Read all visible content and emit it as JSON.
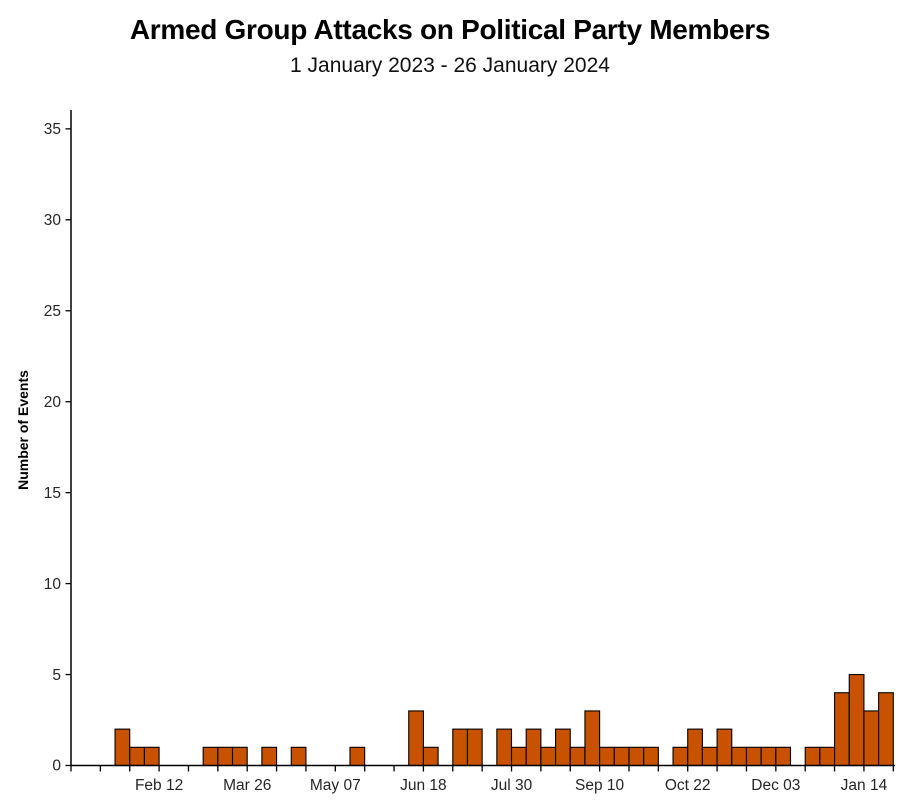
{
  "header": {
    "title": "Armed Group Attacks on Political Party Members",
    "subtitle": "1 January 2023 - 26 January 2024"
  },
  "chart_data": {
    "type": "bar",
    "title": "Armed Group Attacks on Political Party Members",
    "subtitle": "1 January 2023 - 26 January 2024",
    "xlabel": "",
    "ylabel": "Number of Events",
    "ylim": [
      0,
      35
    ],
    "yticks": [
      0,
      5,
      10,
      15,
      20,
      25,
      30,
      35
    ],
    "grid": "off",
    "legend": "none",
    "bin_unit": "week",
    "x_week_starts": [
      "2023-01-01",
      "2023-01-08",
      "2023-01-15",
      "2023-01-22",
      "2023-01-29",
      "2023-02-05",
      "2023-02-12",
      "2023-02-19",
      "2023-02-26",
      "2023-03-05",
      "2023-03-12",
      "2023-03-19",
      "2023-03-26",
      "2023-04-02",
      "2023-04-09",
      "2023-04-16",
      "2023-04-23",
      "2023-04-30",
      "2023-05-07",
      "2023-05-14",
      "2023-05-21",
      "2023-05-28",
      "2023-06-04",
      "2023-06-11",
      "2023-06-18",
      "2023-06-25",
      "2023-07-02",
      "2023-07-09",
      "2023-07-16",
      "2023-07-23",
      "2023-07-30",
      "2023-08-06",
      "2023-08-13",
      "2023-08-20",
      "2023-08-27",
      "2023-09-03",
      "2023-09-10",
      "2023-09-17",
      "2023-09-24",
      "2023-10-01",
      "2023-10-08",
      "2023-10-15",
      "2023-10-22",
      "2023-10-29",
      "2023-11-05",
      "2023-11-12",
      "2023-11-19",
      "2023-11-26",
      "2023-12-03",
      "2023-12-10",
      "2023-12-17",
      "2023-12-24",
      "2023-12-31",
      "2024-01-07",
      "2024-01-14",
      "2024-01-21"
    ],
    "values": [
      0,
      0,
      0,
      2,
      1,
      1,
      0,
      0,
      0,
      1,
      1,
      1,
      0,
      1,
      0,
      1,
      0,
      0,
      0,
      1,
      0,
      0,
      0,
      3,
      1,
      0,
      2,
      2,
      0,
      2,
      1,
      2,
      1,
      2,
      1,
      3,
      1,
      1,
      1,
      1,
      0,
      1,
      2,
      1,
      2,
      1,
      1,
      1,
      1,
      0,
      1,
      1,
      4,
      5,
      3,
      4
    ],
    "xtick_labels": [
      "Feb 12",
      "Mar 26",
      "May 07",
      "Jun 18",
      "Jul 30",
      "Sep 10",
      "Oct 22",
      "Dec 03",
      "Jan 14"
    ],
    "xtick_label_week_indices": [
      6,
      12,
      18,
      24,
      30,
      36,
      42,
      48,
      54
    ],
    "xtick_minor_every_weeks": 2,
    "colors": {
      "bar_fill": "#C85200",
      "bar_stroke": "#000000",
      "axis": "#000000",
      "tick_text": "#262626",
      "title_text": "#000000"
    }
  }
}
